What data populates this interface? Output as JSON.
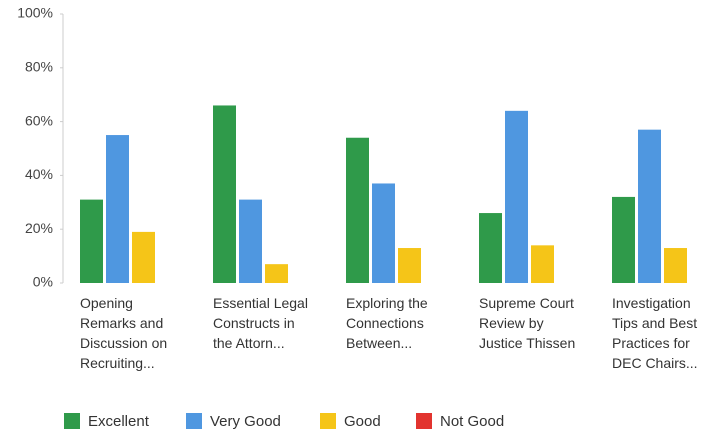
{
  "chart_data": {
    "type": "bar",
    "categories": [
      "Opening Remarks and Discussion on Recruiting...",
      "Essential Legal Constructs in the Attorn...",
      "Exploring the Connections Between...",
      "Supreme Court Review by Justice Thissen",
      "Investigation Tips and Best Practices for DEC Chairs..."
    ],
    "series": [
      {
        "name": "Excellent",
        "color": "#2f9a4a",
        "values": [
          31,
          66,
          54,
          26,
          32
        ]
      },
      {
        "name": "Very Good",
        "color": "#4f97e0",
        "values": [
          55,
          31,
          37,
          64,
          57
        ]
      },
      {
        "name": "Good",
        "color": "#f5c518",
        "values": [
          19,
          7,
          13,
          14,
          13
        ]
      },
      {
        "name": "Not Good",
        "color": "#e2342f",
        "values": [
          0,
          0,
          0,
          0,
          0
        ]
      }
    ],
    "ylim": [
      0,
      100
    ],
    "yticks": [
      {
        "value": 0,
        "label": "0%"
      },
      {
        "value": 20,
        "label": "20%"
      },
      {
        "value": 40,
        "label": "40%"
      },
      {
        "value": 60,
        "label": "60%"
      },
      {
        "value": 80,
        "label": "80%"
      },
      {
        "value": 100,
        "label": "100%"
      }
    ],
    "legend": "bottom-left"
  }
}
